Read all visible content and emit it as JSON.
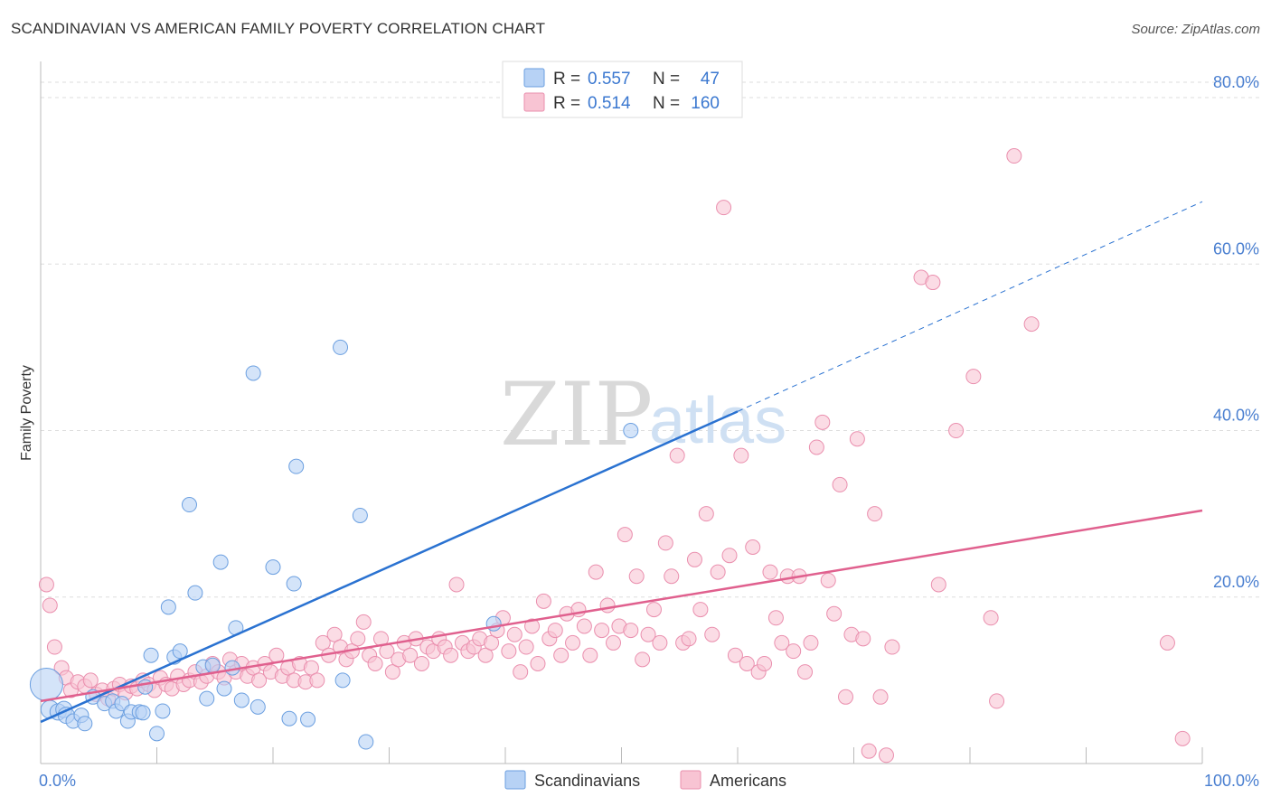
{
  "header": {
    "title": "SCANDINAVIAN VS AMERICAN FAMILY POVERTY CORRELATION CHART",
    "source": "Source: ZipAtlas.com"
  },
  "watermark": {
    "zip": "ZIP",
    "atlas": "atlas"
  },
  "legend": {
    "rows": [
      {
        "r_label": "R = ",
        "r_value": "0.557",
        "n_label": "N = ",
        "n_value": "47"
      },
      {
        "r_label": "R = ",
        "r_value": "0.514",
        "n_label": "N = ",
        "n_value": "160"
      }
    ]
  },
  "colors": {
    "scandinavians_fill": "#b7d2f5",
    "scandinavians_stroke": "#6b9fe0",
    "scandinavians_line": "#2a72d1",
    "americans_fill": "#f8c4d3",
    "americans_stroke": "#ea8fae",
    "americans_line": "#e0608e"
  },
  "chart_data": {
    "type": "scatter",
    "title": "SCANDINAVIAN VS AMERICAN FAMILY POVERTY CORRELATION CHART",
    "xlabel": "",
    "ylabel": "Family Poverty",
    "xlim": [
      0,
      100
    ],
    "ylim": [
      0,
      85
    ],
    "x_tick_labels": [
      "0.0%",
      "100.0%"
    ],
    "y_ticks": [
      20,
      40,
      60,
      80
    ],
    "y_tick_labels": [
      "20.0%",
      "40.0%",
      "60.0%",
      "80.0%"
    ],
    "grid": true,
    "legend_position": "top-center",
    "series": [
      {
        "name": "Scandinavians",
        "r": 0.557,
        "n": 47,
        "trend": {
          "x0": 0,
          "y0": 5.0,
          "x1": 60,
          "y1": 42.3,
          "dashed_to_x": 100,
          "dashed_to_y": 67.5
        },
        "points": [
          [
            0.5,
            9.5,
            18
          ],
          [
            0.8,
            6.5,
            10
          ],
          [
            1.5,
            6.2,
            9
          ],
          [
            2,
            6.5,
            9
          ],
          [
            2.2,
            5.8,
            9
          ],
          [
            2.8,
            5.1,
            8
          ],
          [
            3.5,
            5.8,
            8
          ],
          [
            3.8,
            4.8,
            8
          ],
          [
            4.5,
            8.0,
            8
          ],
          [
            5.5,
            7.2,
            8
          ],
          [
            6.2,
            7.5,
            8
          ],
          [
            6.5,
            6.3,
            8
          ],
          [
            7,
            7.2,
            8
          ],
          [
            7.5,
            5.1,
            8
          ],
          [
            7.8,
            6.2,
            8
          ],
          [
            8.5,
            6.2,
            8
          ],
          [
            8.8,
            6.1,
            8
          ],
          [
            9,
            9.2,
            8
          ],
          [
            9.5,
            13.0,
            8
          ],
          [
            10,
            3.6,
            8
          ],
          [
            10.5,
            6.3,
            8
          ],
          [
            11,
            18.8,
            8
          ],
          [
            11.5,
            12.8,
            8
          ],
          [
            12,
            13.5,
            8
          ],
          [
            12.8,
            31.1,
            8
          ],
          [
            13.3,
            20.5,
            8
          ],
          [
            14,
            11.6,
            8
          ],
          [
            14.3,
            7.8,
            8
          ],
          [
            14.8,
            11.8,
            8
          ],
          [
            15.5,
            24.2,
            8
          ],
          [
            15.8,
            9.0,
            8
          ],
          [
            16.5,
            11.5,
            8
          ],
          [
            16.8,
            16.3,
            8
          ],
          [
            17.3,
            7.6,
            8
          ],
          [
            18.3,
            46.9,
            8
          ],
          [
            18.7,
            6.8,
            8
          ],
          [
            20,
            23.6,
            8
          ],
          [
            21.4,
            5.4,
            8
          ],
          [
            21.8,
            21.6,
            8
          ],
          [
            22,
            35.7,
            8
          ],
          [
            23,
            5.3,
            8
          ],
          [
            25.8,
            50.0,
            8
          ],
          [
            26,
            10.0,
            8
          ],
          [
            27.5,
            29.8,
            8
          ],
          [
            28,
            2.6,
            8
          ],
          [
            39,
            16.8,
            8
          ],
          [
            50.8,
            40.0,
            8
          ]
        ]
      },
      {
        "name": "Americans",
        "r": 0.514,
        "n": 160,
        "trend": {
          "x0": 0,
          "y0": 7.5,
          "x1": 100,
          "y1": 30.4
        },
        "points": [
          [
            0.5,
            21.5
          ],
          [
            0.8,
            19.0
          ],
          [
            1.2,
            14.0
          ],
          [
            1.8,
            11.5
          ],
          [
            2.2,
            10.3
          ],
          [
            2.6,
            8.8
          ],
          [
            3.2,
            9.8
          ],
          [
            3.8,
            9.3
          ],
          [
            4.3,
            10.0
          ],
          [
            4.8,
            8.3
          ],
          [
            5.3,
            8.8
          ],
          [
            5.8,
            7.8
          ],
          [
            6.3,
            9.0
          ],
          [
            6.8,
            9.5
          ],
          [
            7.3,
            8.5
          ],
          [
            7.8,
            9.3
          ],
          [
            8.3,
            9.0
          ],
          [
            8.8,
            10.0
          ],
          [
            9.3,
            9.5
          ],
          [
            9.8,
            8.8
          ],
          [
            10.3,
            10.3
          ],
          [
            10.8,
            9.5
          ],
          [
            11.3,
            9.0
          ],
          [
            11.8,
            10.5
          ],
          [
            12.3,
            9.5
          ],
          [
            12.8,
            10.0
          ],
          [
            13.3,
            11.0
          ],
          [
            13.8,
            9.8
          ],
          [
            14.3,
            10.5
          ],
          [
            14.8,
            12.0
          ],
          [
            15.3,
            11.0
          ],
          [
            15.8,
            10.3
          ],
          [
            16.3,
            12.5
          ],
          [
            16.8,
            11.0
          ],
          [
            17.3,
            12.0
          ],
          [
            17.8,
            10.5
          ],
          [
            18.3,
            11.5
          ],
          [
            18.8,
            10.0
          ],
          [
            19.3,
            12.0
          ],
          [
            19.8,
            11.0
          ],
          [
            20.3,
            13.0
          ],
          [
            20.8,
            10.5
          ],
          [
            21.3,
            11.5
          ],
          [
            21.8,
            10.0
          ],
          [
            22.3,
            12.0
          ],
          [
            22.8,
            9.8
          ],
          [
            23.3,
            11.5
          ],
          [
            23.8,
            10.0
          ],
          [
            24.3,
            14.5
          ],
          [
            24.8,
            13.0
          ],
          [
            25.3,
            15.5
          ],
          [
            25.8,
            14.0
          ],
          [
            26.3,
            12.5
          ],
          [
            26.8,
            13.5
          ],
          [
            27.3,
            15.0
          ],
          [
            27.8,
            17.0
          ],
          [
            28.3,
            13.0
          ],
          [
            28.8,
            12.0
          ],
          [
            29.3,
            15.0
          ],
          [
            29.8,
            13.5
          ],
          [
            30.3,
            11.0
          ],
          [
            30.8,
            12.5
          ],
          [
            31.3,
            14.5
          ],
          [
            31.8,
            13.0
          ],
          [
            32.3,
            15.0
          ],
          [
            32.8,
            12.0
          ],
          [
            33.3,
            14.0
          ],
          [
            33.8,
            13.5
          ],
          [
            34.3,
            15.0
          ],
          [
            34.8,
            14.0
          ],
          [
            35.3,
            13.0
          ],
          [
            35.8,
            21.5
          ],
          [
            36.3,
            14.5
          ],
          [
            36.8,
            13.5
          ],
          [
            37.3,
            14.0
          ],
          [
            37.8,
            15.0
          ],
          [
            38.3,
            13.0
          ],
          [
            38.8,
            14.5
          ],
          [
            39.3,
            16.0
          ],
          [
            39.8,
            17.5
          ],
          [
            40.3,
            13.5
          ],
          [
            40.8,
            15.5
          ],
          [
            41.3,
            11.0
          ],
          [
            41.8,
            14.0
          ],
          [
            42.3,
            16.5
          ],
          [
            42.8,
            12.0
          ],
          [
            43.3,
            19.5
          ],
          [
            43.8,
            15.0
          ],
          [
            44.3,
            16.0
          ],
          [
            44.8,
            13.0
          ],
          [
            45.3,
            18.0
          ],
          [
            45.8,
            14.5
          ],
          [
            46.3,
            18.5
          ],
          [
            46.8,
            16.5
          ],
          [
            47.3,
            13.0
          ],
          [
            47.8,
            23.0
          ],
          [
            48.3,
            16.0
          ],
          [
            48.8,
            19.0
          ],
          [
            49.3,
            14.5
          ],
          [
            49.8,
            16.5
          ],
          [
            50.3,
            27.5
          ],
          [
            50.8,
            16.0
          ],
          [
            51.3,
            22.5
          ],
          [
            51.8,
            12.5
          ],
          [
            52.3,
            15.5
          ],
          [
            52.8,
            18.5
          ],
          [
            53.3,
            14.5
          ],
          [
            53.8,
            26.5
          ],
          [
            54.3,
            22.5
          ],
          [
            54.8,
            37.0
          ],
          [
            55.3,
            14.5
          ],
          [
            55.8,
            15.0
          ],
          [
            56.3,
            24.5
          ],
          [
            56.8,
            18.5
          ],
          [
            57.3,
            30.0
          ],
          [
            57.8,
            15.5
          ],
          [
            58.3,
            23.0
          ],
          [
            58.8,
            66.8
          ],
          [
            59.3,
            25.0
          ],
          [
            59.8,
            13.0
          ],
          [
            60.3,
            37.0
          ],
          [
            60.8,
            12.0
          ],
          [
            61.3,
            26.0
          ],
          [
            61.8,
            11.0
          ],
          [
            62.3,
            12.0
          ],
          [
            62.8,
            23.0
          ],
          [
            63.3,
            17.5
          ],
          [
            63.8,
            14.5
          ],
          [
            64.3,
            22.5
          ],
          [
            64.8,
            13.5
          ],
          [
            65.3,
            22.5
          ],
          [
            65.8,
            11.0
          ],
          [
            66.3,
            14.5
          ],
          [
            66.8,
            38.0
          ],
          [
            67.3,
            41.0
          ],
          [
            67.8,
            22.0
          ],
          [
            68.3,
            18.0
          ],
          [
            68.8,
            33.5
          ],
          [
            69.3,
            8.0
          ],
          [
            69.8,
            15.5
          ],
          [
            70.3,
            39.0
          ],
          [
            70.8,
            15.0
          ],
          [
            71.3,
            1.5
          ],
          [
            71.8,
            30.0
          ],
          [
            72.3,
            8.0
          ],
          [
            72.8,
            1.0
          ],
          [
            73.3,
            14.0
          ],
          [
            75.8,
            58.4
          ],
          [
            76.8,
            57.8
          ],
          [
            77.3,
            21.5
          ],
          [
            78.8,
            40.0
          ],
          [
            80.3,
            46.5
          ],
          [
            81.8,
            17.5
          ],
          [
            82.3,
            7.5
          ],
          [
            83.8,
            73.0
          ],
          [
            85.3,
            52.8
          ],
          [
            98.3,
            3.0
          ],
          [
            97.0,
            14.5
          ]
        ]
      }
    ]
  },
  "bottom_legend": {
    "items": [
      {
        "label": "Scandinavians"
      },
      {
        "label": "Americans"
      }
    ]
  }
}
